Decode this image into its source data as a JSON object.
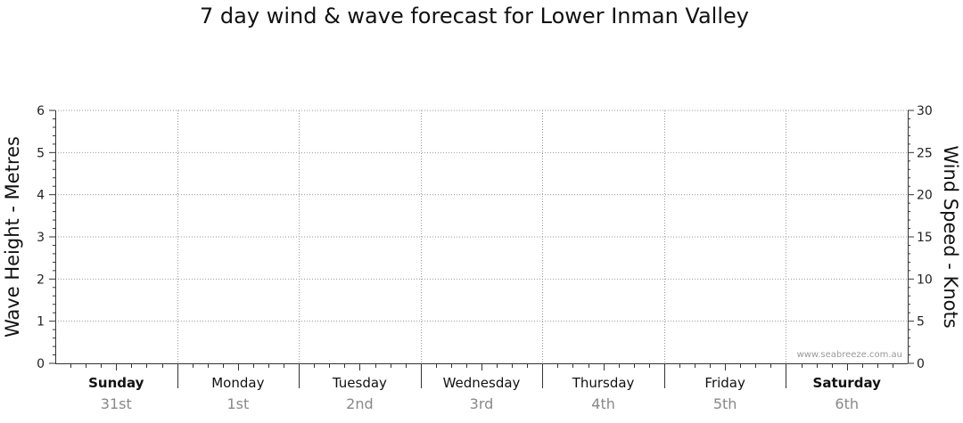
{
  "chart_data": {
    "type": "line",
    "title": "7 day wind & wave forecast for Lower Inman Valley",
    "left_axis": {
      "label": "Wave Height - Metres",
      "ylim": [
        0,
        6
      ],
      "ticks": [
        "0",
        "1",
        "2",
        "3",
        "4",
        "5",
        "6"
      ]
    },
    "right_axis": {
      "label": "Wind Speed - Knots",
      "ylim": [
        0,
        30
      ],
      "ticks": [
        "0",
        "5",
        "10",
        "15",
        "20",
        "25",
        "30"
      ]
    },
    "days": [
      {
        "name": "Sunday",
        "date": "31st",
        "bold": true
      },
      {
        "name": "Monday",
        "date": "1st",
        "bold": false
      },
      {
        "name": "Tuesday",
        "date": "2nd",
        "bold": false
      },
      {
        "name": "Wednesday",
        "date": "3rd",
        "bold": false
      },
      {
        "name": "Thursday",
        "date": "4th",
        "bold": false
      },
      {
        "name": "Friday",
        "date": "5th",
        "bold": false
      },
      {
        "name": "Saturday",
        "date": "6th",
        "bold": true
      }
    ],
    "series": [],
    "grid": true,
    "watermark": "www.seabreeze.com.au"
  }
}
